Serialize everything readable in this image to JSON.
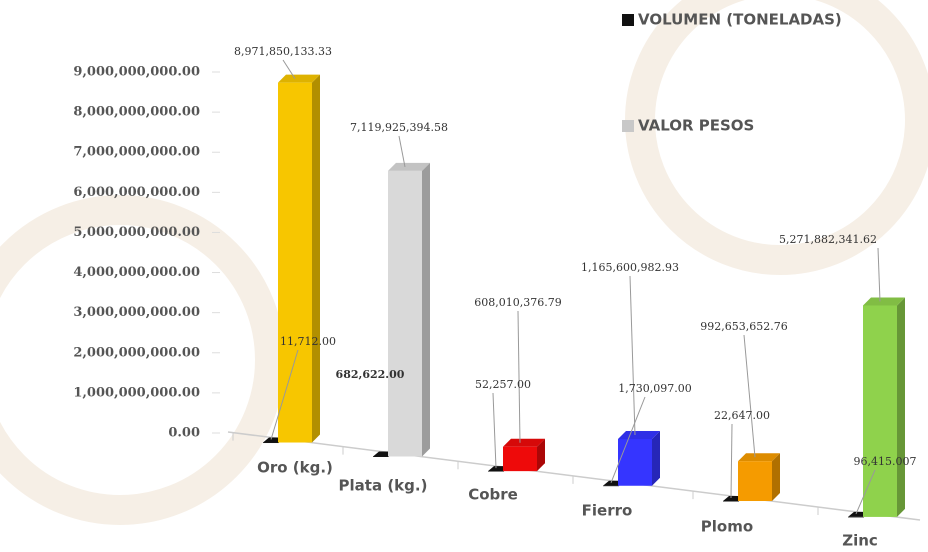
{
  "chart_data": {
    "type": "bar3d",
    "categories": [
      "Oro (kg.)",
      "Plata (kg.)",
      "Cobre",
      "Fierro",
      "Plomo",
      "Zinc"
    ],
    "series": [
      {
        "name": "VOLUMEN (TONELADAS)",
        "color": "#111111",
        "values": [
          11712,
          682622,
          52257,
          1730097,
          22647,
          96415.007
        ],
        "value_labels": [
          "11,712.00",
          "682,622.00",
          "52,257.00",
          "1,730,097.00",
          "22,647.00",
          "96,415.007"
        ]
      },
      {
        "name": "VALOR PESOS",
        "color": "#c8c8c8",
        "point_colors": [
          "#f7c600",
          "#d9d9d9",
          "#ee0a0a",
          "#3535ff",
          "#f59b00",
          "#8fd24c"
        ],
        "values": [
          8971850133.33,
          7119925394.58,
          608010376.79,
          1165600982.93,
          992653652.76,
          5271882341.62
        ],
        "value_labels": [
          "8,971,850,133.33",
          "7,119,925,394.58",
          "608,010,376.79",
          "1,165,600,982.93",
          "992,653,652.76",
          "5,271,882,341.62"
        ]
      }
    ],
    "ylim": [
      0,
      9000000000
    ],
    "yticks": [
      {
        "value": 0,
        "label": "0.00"
      },
      {
        "value": 1000000000,
        "label": "1,000,000,000.00"
      },
      {
        "value": 2000000000,
        "label": "2,000,000,000.00"
      },
      {
        "value": 3000000000,
        "label": "3,000,000,000.00"
      },
      {
        "value": 4000000000,
        "label": "4,000,000,000.00"
      },
      {
        "value": 5000000000,
        "label": "5,000,000,000.00"
      },
      {
        "value": 6000000000,
        "label": "6,000,000,000.00"
      },
      {
        "value": 7000000000,
        "label": "7,000,000,000.00"
      },
      {
        "value": 8000000000,
        "label": "8,000,000,000.00"
      },
      {
        "value": 9000000000,
        "label": "9,000,000,000.00"
      }
    ]
  }
}
